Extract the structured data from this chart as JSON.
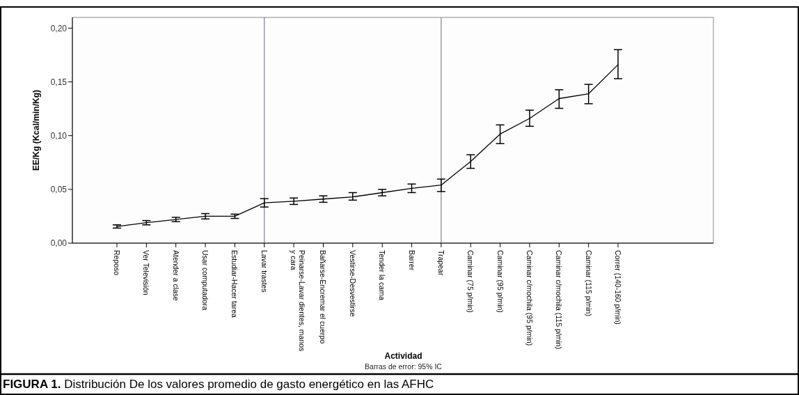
{
  "chart_data": {
    "type": "line",
    "title": "FIGURA 1. Distribución De los valores promedio de gasto energético en las AFHC",
    "xlabel": "Actividad",
    "ylabel": "EE/Kg (Kcal/min/Kg)",
    "annotations": [
      "Barras de error: 95% IC"
    ],
    "categories": [
      "Reposo",
      "Ver Televisión",
      "Atender a clase",
      "Usar computadora",
      "Estudiar-Hacer tarea",
      "Lavar trastes",
      "Peinarse-Lavar dientes, manos y cara",
      "Bañarse-Encremar el cuerpo",
      "Vestirse-Desvestirse",
      "Tender la cama",
      "Barrer",
      "Trapear",
      "Caminar (75 p/min)",
      "Caminar (95 p/min)",
      "Caminar c/mochila (95 p/min)",
      "Caminar c/mochila (115 p/min)",
      "Caminar (115 p/min)",
      "Correr (140-160 p/min)"
    ],
    "series": [
      {
        "color": "#000000",
        "values": [
          0.0155,
          0.019,
          0.022,
          0.025,
          0.025,
          0.0375,
          0.039,
          0.041,
          0.043,
          0.047,
          0.051,
          0.054,
          0.076,
          0.1015,
          0.116,
          0.1345,
          0.139,
          0.166
        ],
        "errors": [
          [
            0.014,
            0.017
          ],
          [
            0.017,
            0.021
          ],
          [
            0.02,
            0.024
          ],
          [
            0.0225,
            0.0275
          ],
          [
            0.023,
            0.027
          ],
          [
            0.0336,
            0.0414
          ],
          [
            0.036,
            0.042
          ],
          [
            0.038,
            0.044
          ],
          [
            0.04,
            0.047
          ],
          [
            0.044,
            0.05
          ],
          [
            0.047,
            0.055
          ],
          [
            0.048,
            0.0596
          ],
          [
            0.0696,
            0.0822
          ],
          [
            0.0926,
            0.11
          ],
          [
            0.1087,
            0.1237
          ],
          [
            0.1254,
            0.1427
          ],
          [
            0.1297,
            0.1477
          ],
          [
            0.153,
            0.18
          ]
        ]
      }
    ],
    "ylim": [
      0,
      0.21
    ],
    "yticks": [
      {
        "value": 0,
        "label": "0,00"
      },
      {
        "value": 0.05,
        "label": "0,05"
      },
      {
        "value": 0.1,
        "label": "0,10"
      },
      {
        "value": 0.15,
        "label": "0,15"
      },
      {
        "value": 0.2,
        "label": "0,20"
      }
    ],
    "ref_lines": [
      {
        "axis": "x",
        "value": "Lavar trastes",
        "color": "#7f7f8f"
      },
      {
        "axis": "x",
        "value": "Trapear",
        "color": "#7f7f8f"
      }
    ],
    "marker": "none",
    "line_style": "solid",
    "grid": false
  }
}
